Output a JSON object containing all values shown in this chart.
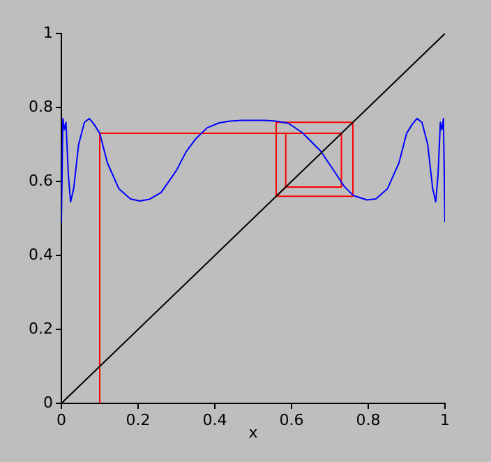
{
  "chart_data": {
    "type": "line",
    "xlabel": "x",
    "xlim": [
      0,
      1
    ],
    "ylim": [
      0,
      1
    ],
    "xticks": [
      0,
      0.2,
      0.4,
      0.6,
      0.8,
      1
    ],
    "yticks": [
      0,
      0.2,
      0.4,
      0.6,
      0.8,
      1
    ],
    "grid": false,
    "legend": false,
    "marker": "none",
    "line_style": "solid",
    "series": [
      {
        "color": "#000000",
        "x": [
          0,
          1
        ],
        "values": [
          0,
          1
        ]
      },
      {
        "color": "#0000ff",
        "x": [
          0,
          0.004,
          0.008,
          0.012,
          0.018,
          0.024,
          0.032,
          0.045,
          0.06,
          0.073,
          0.085,
          0.1,
          0.12,
          0.15,
          0.18,
          0.204,
          0.23,
          0.26,
          0.3,
          0.325,
          0.35,
          0.38,
          0.41,
          0.44,
          0.47,
          0.5,
          0.53,
          0.56,
          0.592,
          0.628,
          0.676,
          0.713,
          0.737,
          0.761,
          0.797,
          0.82,
          0.85,
          0.88,
          0.9,
          0.915,
          0.927,
          0.94,
          0.955,
          0.968,
          0.976,
          0.982,
          0.988,
          0.992,
          0.996,
          1
        ],
        "values": [
          0.49,
          0.77,
          0.74,
          0.76,
          0.62,
          0.545,
          0.58,
          0.7,
          0.76,
          0.77,
          0.755,
          0.73,
          0.65,
          0.58,
          0.553,
          0.547,
          0.552,
          0.57,
          0.63,
          0.68,
          0.715,
          0.745,
          0.758,
          0.763,
          0.765,
          0.765,
          0.765,
          0.763,
          0.757,
          0.732,
          0.682,
          0.625,
          0.587,
          0.562,
          0.55,
          0.553,
          0.58,
          0.65,
          0.73,
          0.755,
          0.77,
          0.76,
          0.7,
          0.58,
          0.545,
          0.62,
          0.76,
          0.74,
          0.77,
          0.49
        ]
      },
      {
        "color": "#ff0000",
        "x": [
          0.1,
          0.1,
          0.73,
          0.73,
          0.585,
          0.585,
          0.585,
          0.56,
          0.56,
          0.76,
          0.76,
          0.56
        ],
        "values": [
          0,
          0.73,
          0.73,
          0.585,
          0.585,
          0.73,
          0.585,
          0.56,
          0.76,
          0.76,
          0.56,
          0.56
        ]
      }
    ]
  }
}
